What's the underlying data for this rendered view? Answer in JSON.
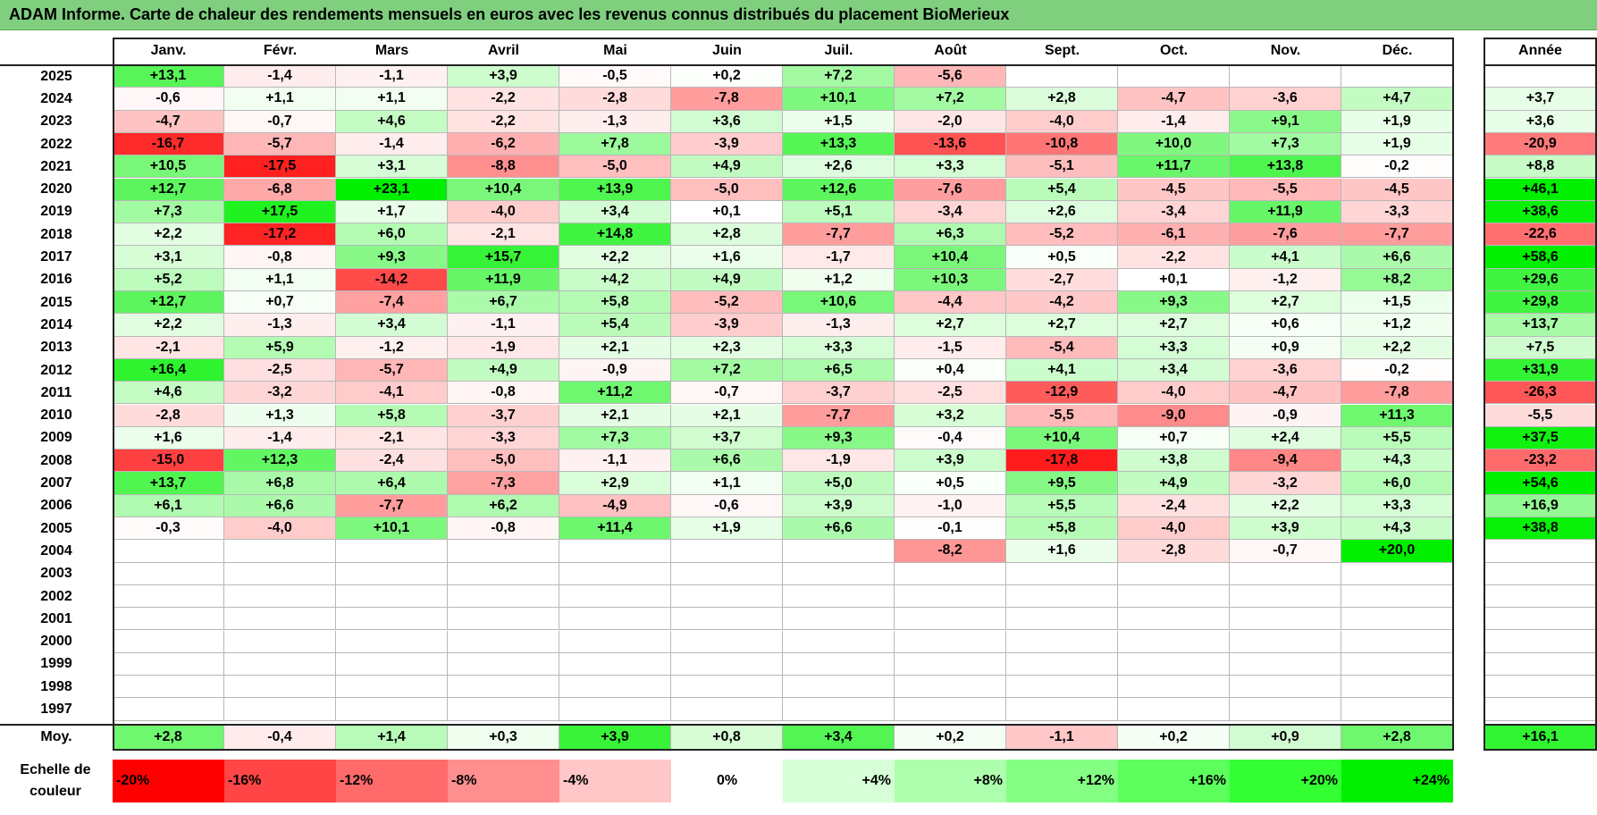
{
  "title": "ADAM Informe. Carte de chaleur des rendements mensuels en euros avec les revenus connus distribués du placement BioMerieux",
  "chart_data": {
    "type": "heatmap",
    "title": "ADAM Informe. Carte de chaleur des rendements mensuels en euros avec les revenus connus distribués du placement BioMerieux",
    "columns": [
      "Janv.",
      "Févr.",
      "Mars",
      "Avril",
      "Mai",
      "Juin",
      "Juil.",
      "Août",
      "Sept.",
      "Oct.",
      "Nov.",
      "Déc."
    ],
    "annual_header": "Année",
    "rows": [
      {
        "year": "2025",
        "values": [
          "+13,1",
          "-1,4",
          "-1,1",
          "+3,9",
          "-0,5",
          "+0,2",
          "+7,2",
          "-5,6",
          "",
          "",
          "",
          ""
        ],
        "annual": ""
      },
      {
        "year": "2024",
        "values": [
          "-0,6",
          "+1,1",
          "+1,1",
          "-2,2",
          "-2,8",
          "-7,8",
          "+10,1",
          "+7,2",
          "+2,8",
          "-4,7",
          "-3,6",
          "+4,7"
        ],
        "annual": "+3,7"
      },
      {
        "year": "2023",
        "values": [
          "-4,7",
          "-0,7",
          "+4,6",
          "-2,2",
          "-1,3",
          "+3,6",
          "+1,5",
          "-2,0",
          "-4,0",
          "-1,4",
          "+9,1",
          "+1,9"
        ],
        "annual": "+3,6"
      },
      {
        "year": "2022",
        "values": [
          "-16,7",
          "-5,7",
          "-1,4",
          "-6,2",
          "+7,8",
          "-3,9",
          "+13,3",
          "-13,6",
          "-10,8",
          "+10,0",
          "+7,3",
          "+1,9"
        ],
        "annual": "-20,9"
      },
      {
        "year": "2021",
        "values": [
          "+10,5",
          "-17,5",
          "+3,1",
          "-8,8",
          "-5,0",
          "+4,9",
          "+2,6",
          "+3,3",
          "-5,1",
          "+11,7",
          "+13,8",
          "-0,2"
        ],
        "annual": "+8,8"
      },
      {
        "year": "2020",
        "values": [
          "+12,7",
          "-6,8",
          "+23,1",
          "+10,4",
          "+13,9",
          "-5,0",
          "+12,6",
          "-7,6",
          "+5,4",
          "-4,5",
          "-5,5",
          "-4,5"
        ],
        "annual": "+46,1"
      },
      {
        "year": "2019",
        "values": [
          "+7,3",
          "+17,5",
          "+1,7",
          "-4,0",
          "+3,4",
          "+0,1",
          "+5,1",
          "-3,4",
          "+2,6",
          "-3,4",
          "+11,9",
          "-3,3"
        ],
        "annual": "+38,6"
      },
      {
        "year": "2018",
        "values": [
          "+2,2",
          "-17,2",
          "+6,0",
          "-2,1",
          "+14,8",
          "+2,8",
          "-7,7",
          "+6,3",
          "-5,2",
          "-6,1",
          "-7,6",
          "-7,7"
        ],
        "annual": "-22,6"
      },
      {
        "year": "2017",
        "values": [
          "+3,1",
          "-0,8",
          "+9,3",
          "+15,7",
          "+2,2",
          "+1,6",
          "-1,7",
          "+10,4",
          "+0,5",
          "-2,2",
          "+4,1",
          "+6,6"
        ],
        "annual": "+58,6"
      },
      {
        "year": "2016",
        "values": [
          "+5,2",
          "+1,1",
          "-14,2",
          "+11,9",
          "+4,2",
          "+4,9",
          "+1,2",
          "+10,3",
          "-2,7",
          "+0,1",
          "-1,2",
          "+8,2"
        ],
        "annual": "+29,6"
      },
      {
        "year": "2015",
        "values": [
          "+12,7",
          "+0,7",
          "-7,4",
          "+6,7",
          "+5,8",
          "-5,2",
          "+10,6",
          "-4,4",
          "-4,2",
          "+9,3",
          "+2,7",
          "+1,5"
        ],
        "annual": "+29,8"
      },
      {
        "year": "2014",
        "values": [
          "+2,2",
          "-1,3",
          "+3,4",
          "-1,1",
          "+5,4",
          "-3,9",
          "-1,3",
          "+2,7",
          "+2,7",
          "+2,7",
          "+0,6",
          "+1,2"
        ],
        "annual": "+13,7"
      },
      {
        "year": "2013",
        "values": [
          "-2,1",
          "+5,9",
          "-1,2",
          "-1,9",
          "+2,1",
          "+2,3",
          "+3,3",
          "-1,5",
          "-5,4",
          "+3,3",
          "+0,9",
          "+2,2"
        ],
        "annual": "+7,5"
      },
      {
        "year": "2012",
        "values": [
          "+16,4",
          "-2,5",
          "-5,7",
          "+4,9",
          "-0,9",
          "+7,2",
          "+6,5",
          "+0,4",
          "+4,1",
          "+3,4",
          "-3,6",
          "-0,2"
        ],
        "annual": "+31,9"
      },
      {
        "year": "2011",
        "values": [
          "+4,6",
          "-3,2",
          "-4,1",
          "-0,8",
          "+11,2",
          "-0,7",
          "-3,7",
          "-2,5",
          "-12,9",
          "-4,0",
          "-4,7",
          "-7,8"
        ],
        "annual": "-26,3"
      },
      {
        "year": "2010",
        "values": [
          "-2,8",
          "+1,3",
          "+5,8",
          "-3,7",
          "+2,1",
          "+2,1",
          "-7,7",
          "+3,2",
          "-5,5",
          "-9,0",
          "-0,9",
          "+11,3"
        ],
        "annual": "-5,5"
      },
      {
        "year": "2009",
        "values": [
          "+1,6",
          "-1,4",
          "-2,1",
          "-3,3",
          "+7,3",
          "+3,7",
          "+9,3",
          "-0,4",
          "+10,4",
          "+0,7",
          "+2,4",
          "+5,5"
        ],
        "annual": "+37,5"
      },
      {
        "year": "2008",
        "values": [
          "-15,0",
          "+12,3",
          "-2,4",
          "-5,0",
          "-1,1",
          "+6,6",
          "-1,9",
          "+3,9",
          "-17,8",
          "+3,8",
          "-9,4",
          "+4,3"
        ],
        "annual": "-23,2"
      },
      {
        "year": "2007",
        "values": [
          "+13,7",
          "+6,8",
          "+6,4",
          "-7,3",
          "+2,9",
          "+1,1",
          "+5,0",
          "+0,5",
          "+9,5",
          "+4,9",
          "-3,2",
          "+6,0"
        ],
        "annual": "+54,6"
      },
      {
        "year": "2006",
        "values": [
          "+6,1",
          "+6,6",
          "-7,7",
          "+6,2",
          "-4,9",
          "-0,6",
          "+3,9",
          "-1,0",
          "+5,5",
          "-2,4",
          "+2,2",
          "+3,3"
        ],
        "annual": "+16,9"
      },
      {
        "year": "2005",
        "values": [
          "-0,3",
          "-4,0",
          "+10,1",
          "-0,8",
          "+11,4",
          "+1,9",
          "+6,6",
          "-0,1",
          "+5,8",
          "-4,0",
          "+3,9",
          "+4,3"
        ],
        "annual": "+38,8"
      },
      {
        "year": "2004",
        "values": [
          "",
          "",
          "",
          "",
          "",
          "",
          "",
          "-8,2",
          "+1,6",
          "-2,8",
          "-0,7",
          "+20,0"
        ],
        "annual": ""
      },
      {
        "year": "2003",
        "values": [
          "",
          "",
          "",
          "",
          "",
          "",
          "",
          "",
          "",
          "",
          "",
          ""
        ],
        "annual": ""
      },
      {
        "year": "2002",
        "values": [
          "",
          "",
          "",
          "",
          "",
          "",
          "",
          "",
          "",
          "",
          "",
          ""
        ],
        "annual": ""
      },
      {
        "year": "2001",
        "values": [
          "",
          "",
          "",
          "",
          "",
          "",
          "",
          "",
          "",
          "",
          "",
          ""
        ],
        "annual": ""
      },
      {
        "year": "2000",
        "values": [
          "",
          "",
          "",
          "",
          "",
          "",
          "",
          "",
          "",
          "",
          "",
          ""
        ],
        "annual": ""
      },
      {
        "year": "1999",
        "values": [
          "",
          "",
          "",
          "",
          "",
          "",
          "",
          "",
          "",
          "",
          "",
          ""
        ],
        "annual": ""
      },
      {
        "year": "1998",
        "values": [
          "",
          "",
          "",
          "",
          "",
          "",
          "",
          "",
          "",
          "",
          "",
          ""
        ],
        "annual": ""
      },
      {
        "year": "1997",
        "values": [
          "",
          "",
          "",
          "",
          "",
          "",
          "",
          "",
          "",
          "",
          "",
          ""
        ],
        "annual": ""
      }
    ],
    "average": {
      "label": "Moy.",
      "values": [
        "+2,8",
        "-0,4",
        "+1,4",
        "+0,3",
        "+3,9",
        "+0,8",
        "+3,4",
        "+0,2",
        "-1,1",
        "+0,2",
        "+0,9",
        "+2,8"
      ],
      "annual": "+16,1"
    },
    "color_scale": {
      "label_line1": "Echelle de",
      "label_line2": "couleur",
      "stops": [
        "-20%",
        "-16%",
        "-12%",
        "-8%",
        "-4%",
        "0%",
        "+4%",
        "+8%",
        "+12%",
        "+16%",
        "+20%",
        "+24%"
      ],
      "colors": [
        "#ff0000",
        "#ff4545",
        "#ff6a6a",
        "#ff8f8f",
        "#ffc7c7",
        "#ffffff",
        "#d7ffd7",
        "#adffad",
        "#84ff84",
        "#5cff5c",
        "#33ff33",
        "#00f000"
      ],
      "negative_color": "#ff0000",
      "positive_color": "#00f000"
    }
  }
}
